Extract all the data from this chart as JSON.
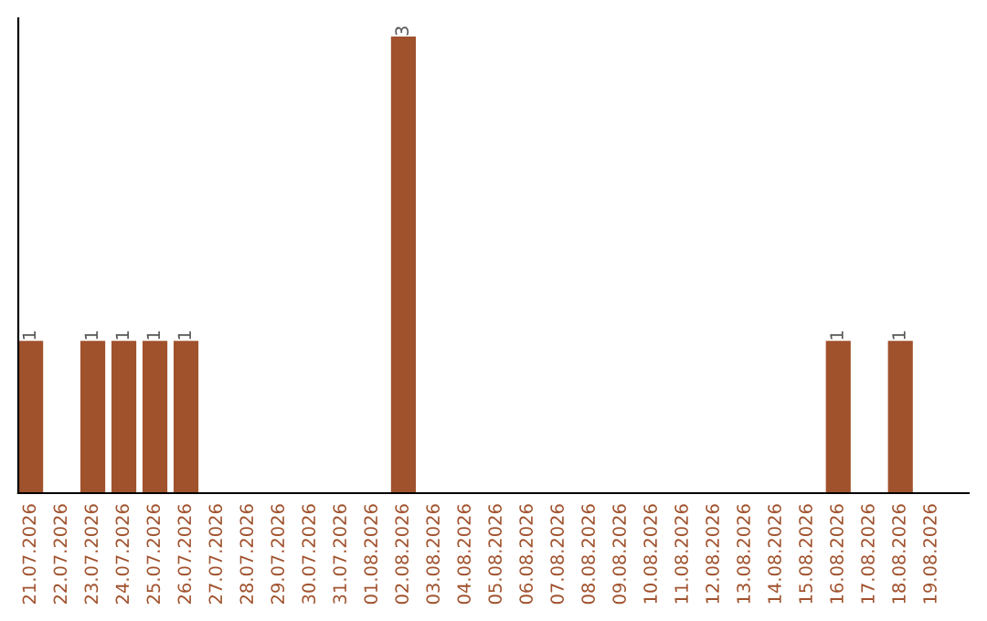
{
  "chart_data": {
    "type": "bar",
    "categories": [
      "21.07.2026",
      "22.07.2026",
      "23.07.2026",
      "24.07.2026",
      "25.07.2026",
      "26.07.2026",
      "27.07.2026",
      "28.07.2026",
      "29.07.2026",
      "30.07.2026",
      "31.07.2026",
      "01.08.2026",
      "02.08.2026",
      "03.08.2026",
      "04.08.2026",
      "05.08.2026",
      "06.08.2026",
      "07.08.2026",
      "08.08.2026",
      "09.08.2026",
      "10.08.2026",
      "11.08.2026",
      "12.08.2026",
      "13.08.2026",
      "14.08.2026",
      "15.08.2026",
      "16.08.2026",
      "17.08.2026",
      "18.08.2026",
      "19.08.2026"
    ],
    "values": [
      1,
      0,
      1,
      1,
      1,
      1,
      0,
      0,
      0,
      0,
      0,
      0,
      3,
      0,
      0,
      0,
      0,
      0,
      0,
      0,
      0,
      0,
      0,
      0,
      0,
      0,
      1,
      0,
      1,
      0
    ],
    "value_labels": [
      "1",
      null,
      "1",
      "1",
      "1",
      "1",
      null,
      null,
      null,
      null,
      null,
      null,
      "3",
      null,
      null,
      null,
      null,
      null,
      null,
      null,
      null,
      null,
      null,
      null,
      null,
      null,
      "1",
      null,
      "1",
      null
    ],
    "color": "#a0522d",
    "grid": false,
    "legend": false
  }
}
